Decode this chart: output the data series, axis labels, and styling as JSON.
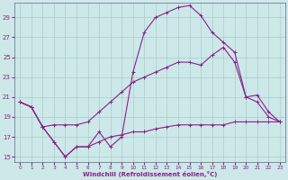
{
  "xlabel": "Windchill (Refroidissement éolien,°C)",
  "bg_color": "#cce8e8",
  "grid_color": "#aacccc",
  "line_color": "#882288",
  "ylim": [
    14.5,
    30.5
  ],
  "xlim": [
    -0.5,
    23.5
  ],
  "yticks": [
    15,
    17,
    19,
    21,
    23,
    25,
    27,
    29
  ],
  "xticks": [
    0,
    1,
    2,
    3,
    4,
    5,
    6,
    7,
    8,
    9,
    10,
    11,
    12,
    13,
    14,
    15,
    16,
    17,
    18,
    19,
    20,
    21,
    22,
    23
  ],
  "series1_x": [
    0,
    1,
    2,
    3,
    4,
    5,
    6,
    7,
    8,
    9,
    10,
    11,
    12,
    13,
    14,
    15,
    16,
    17,
    18,
    19,
    20,
    21,
    22,
    23
  ],
  "series1_y": [
    20.5,
    20.0,
    18.0,
    16.5,
    15.0,
    16.0,
    16.0,
    17.5,
    16.0,
    17.0,
    23.5,
    27.5,
    29.0,
    29.5,
    30.0,
    30.2,
    29.2,
    27.5,
    26.5,
    25.5,
    21.0,
    20.5,
    19.0,
    18.5
  ],
  "series2_x": [
    0,
    1,
    2,
    3,
    4,
    5,
    6,
    7,
    8,
    9,
    10,
    11,
    12,
    13,
    14,
    15,
    16,
    17,
    18,
    19,
    20,
    21,
    22,
    23
  ],
  "series2_y": [
    20.5,
    20.0,
    18.0,
    18.2,
    18.2,
    18.2,
    18.5,
    19.5,
    20.5,
    21.5,
    22.5,
    23.0,
    23.5,
    24.0,
    24.5,
    24.5,
    24.2,
    25.2,
    26.0,
    24.5,
    21.0,
    21.2,
    19.5,
    18.5
  ],
  "series3_x": [
    0,
    1,
    2,
    3,
    4,
    5,
    6,
    7,
    8,
    9,
    10,
    11,
    12,
    13,
    14,
    15,
    16,
    17,
    18,
    19,
    20,
    21,
    22,
    23
  ],
  "series3_y": [
    20.5,
    20.0,
    18.0,
    16.5,
    15.0,
    16.0,
    16.0,
    16.5,
    17.0,
    17.2,
    17.5,
    17.5,
    17.8,
    18.0,
    18.2,
    18.2,
    18.2,
    18.2,
    18.2,
    18.5,
    18.5,
    18.5,
    18.5,
    18.5
  ]
}
